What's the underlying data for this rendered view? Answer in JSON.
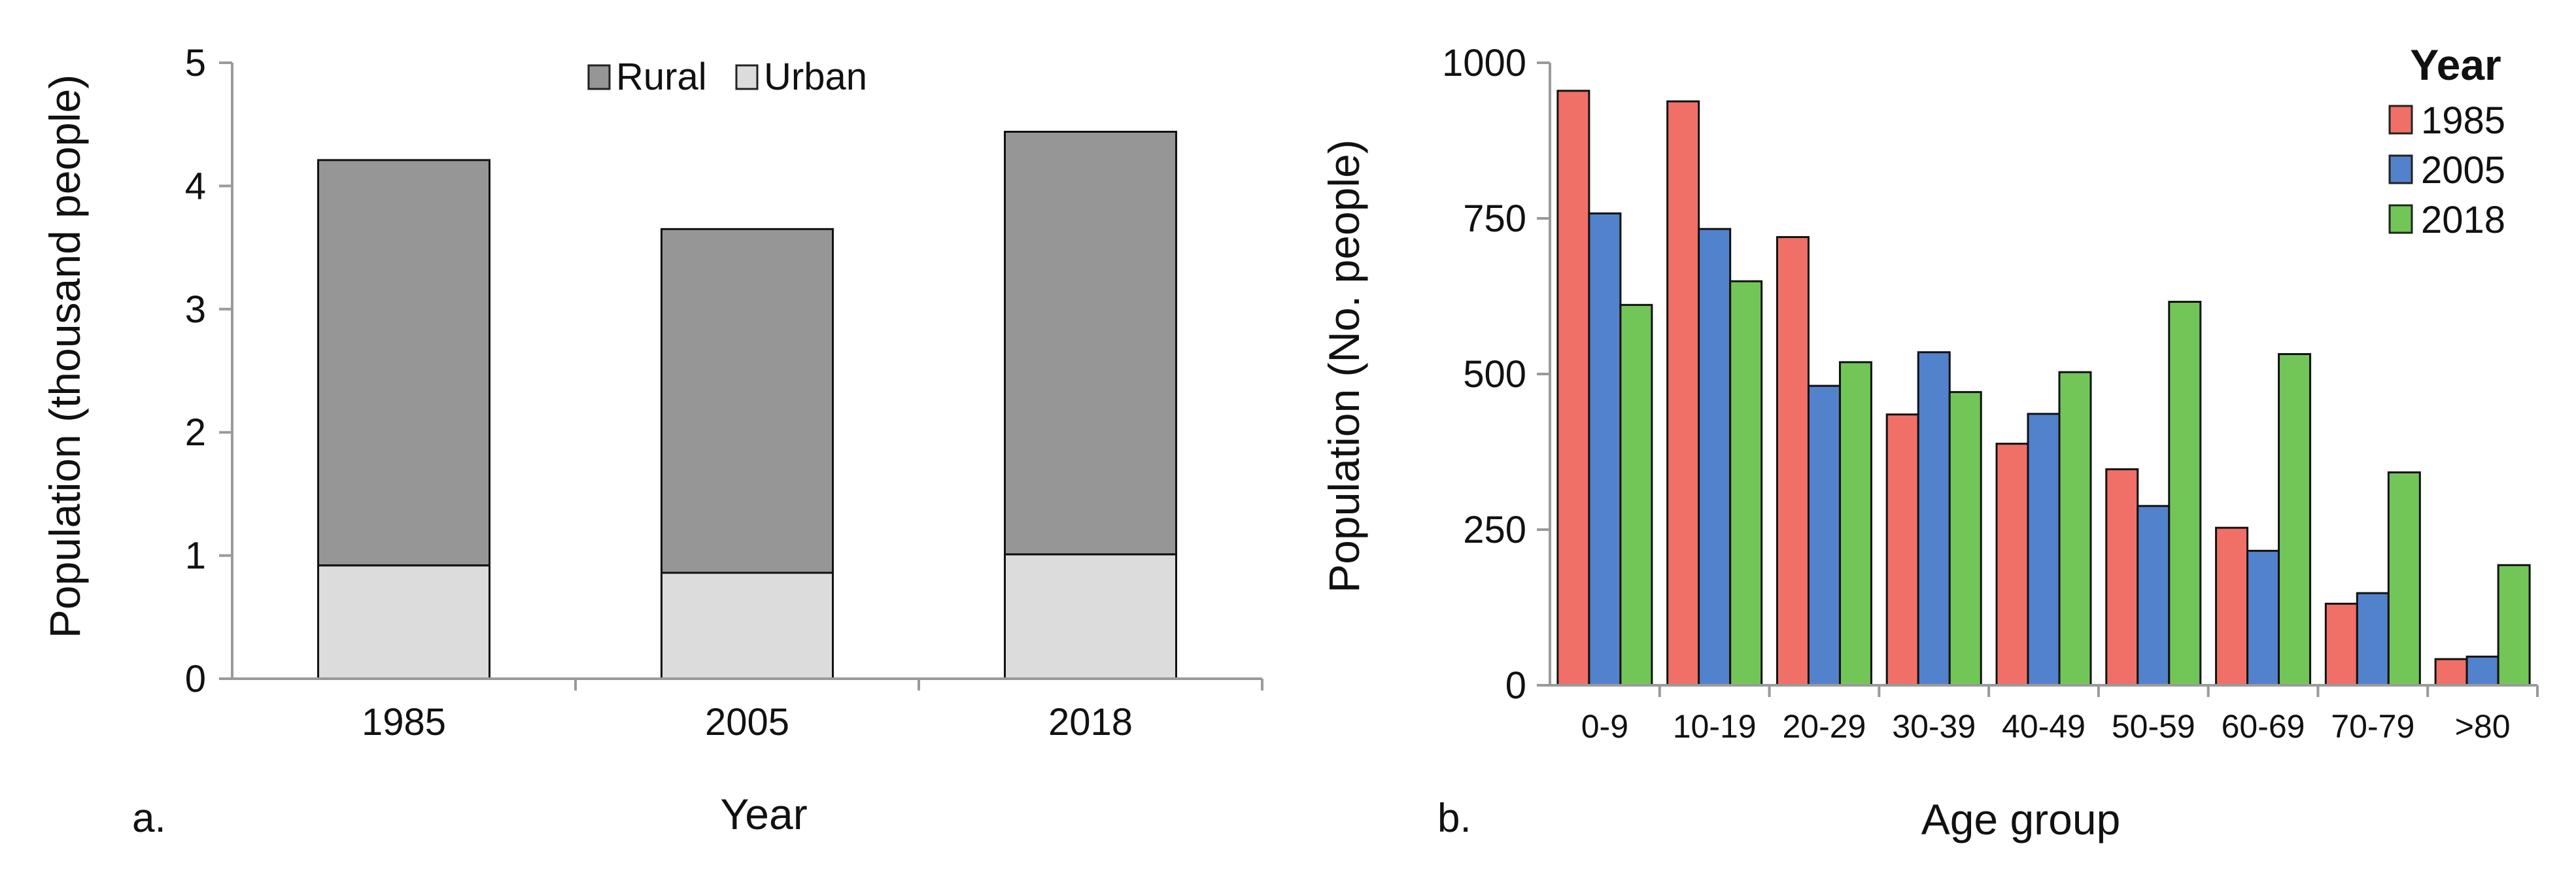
{
  "chart_data": [
    {
      "type": "bar",
      "stacked": true,
      "panel_label": "a.",
      "categories": [
        "1985",
        "2005",
        "2018"
      ],
      "series": [
        {
          "name": "Urban",
          "color": "#dcdcdc",
          "values": [
            0.92,
            0.86,
            1.01
          ]
        },
        {
          "name": "Rural",
          "color": "#969696",
          "values": [
            3.29,
            2.79,
            3.43
          ]
        }
      ],
      "xlabel": "Year",
      "ylabel": "Population (thousand people)",
      "ylim": [
        0,
        5
      ],
      "yticks": [
        "0",
        "1",
        "2",
        "3",
        "4",
        "5"
      ],
      "legend": [
        "Rural",
        "Urban"
      ],
      "legend_position": "top-center"
    },
    {
      "type": "bar",
      "stacked": false,
      "panel_label": "b.",
      "categories": [
        "0-9",
        "10-19",
        "20-29",
        "30-39",
        "40-49",
        "50-59",
        "60-69",
        "70-79",
        ">80"
      ],
      "series": [
        {
          "name": "1985",
          "color": "#f07068",
          "values": [
            955,
            938,
            720,
            435,
            388,
            347,
            253,
            131,
            42
          ]
        },
        {
          "name": "2005",
          "color": "#5382cc",
          "values": [
            758,
            733,
            481,
            535,
            436,
            288,
            216,
            148,
            46
          ]
        },
        {
          "name": "2018",
          "color": "#72c658",
          "values": [
            611,
            649,
            519,
            471,
            503,
            616,
            532,
            342,
            193
          ]
        }
      ],
      "xlabel": "Age group",
      "ylabel": "Population (No. people)",
      "ylim": [
        0,
        1000
      ],
      "yticks": [
        "0",
        "250",
        "500",
        "750",
        "1000"
      ],
      "legend_title": "Year",
      "legend_position": "top-right"
    }
  ]
}
